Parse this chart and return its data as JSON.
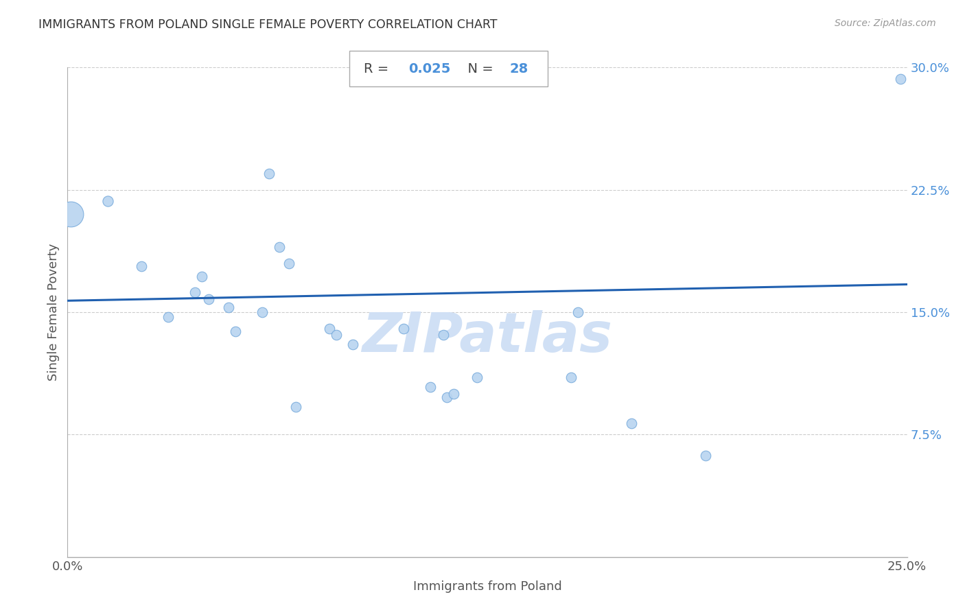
{
  "title": "IMMIGRANTS FROM POLAND SINGLE FEMALE POVERTY CORRELATION CHART",
  "source": "Source: ZipAtlas.com",
  "xlabel": "Immigrants from Poland",
  "ylabel": "Single Female Poverty",
  "R_value": "0.025",
  "N_value": "28",
  "xlim": [
    0.0,
    0.25
  ],
  "ylim": [
    0.0,
    0.3
  ],
  "xtick_positions": [
    0.0,
    0.05,
    0.1,
    0.15,
    0.2,
    0.25
  ],
  "xtick_labels": [
    "0.0%",
    "",
    "",
    "",
    "",
    "25.0%"
  ],
  "ytick_positions": [
    0.0,
    0.075,
    0.15,
    0.225,
    0.3
  ],
  "ytick_labels": [
    "",
    "7.5%",
    "15.0%",
    "22.5%",
    "30.0%"
  ],
  "scatter_fill": "#b8d4f0",
  "scatter_edge": "#7aacdc",
  "line_color": "#2060b0",
  "watermark_text": "ZIPatlas",
  "watermark_color": "#d0e0f5",
  "points": [
    [
      0.001,
      0.21,
      700
    ],
    [
      0.012,
      0.218,
      120
    ],
    [
      0.022,
      0.178,
      110
    ],
    [
      0.03,
      0.147,
      110
    ],
    [
      0.038,
      0.162,
      110
    ],
    [
      0.042,
      0.158,
      110
    ],
    [
      0.048,
      0.153,
      110
    ],
    [
      0.04,
      0.172,
      110
    ],
    [
      0.05,
      0.138,
      110
    ],
    [
      0.06,
      0.235,
      110
    ],
    [
      0.058,
      0.15,
      110
    ],
    [
      0.063,
      0.19,
      110
    ],
    [
      0.066,
      0.18,
      110
    ],
    [
      0.068,
      0.092,
      110
    ],
    [
      0.078,
      0.14,
      110
    ],
    [
      0.08,
      0.136,
      110
    ],
    [
      0.085,
      0.13,
      110
    ],
    [
      0.1,
      0.14,
      110
    ],
    [
      0.108,
      0.104,
      110
    ],
    [
      0.112,
      0.136,
      110
    ],
    [
      0.113,
      0.098,
      110
    ],
    [
      0.115,
      0.1,
      110
    ],
    [
      0.122,
      0.11,
      110
    ],
    [
      0.15,
      0.11,
      110
    ],
    [
      0.152,
      0.15,
      110
    ],
    [
      0.168,
      0.082,
      110
    ],
    [
      0.19,
      0.062,
      110
    ],
    [
      0.248,
      0.293,
      110
    ]
  ],
  "line_x": [
    0.0,
    0.25
  ],
  "line_y": [
    0.157,
    0.167
  ]
}
